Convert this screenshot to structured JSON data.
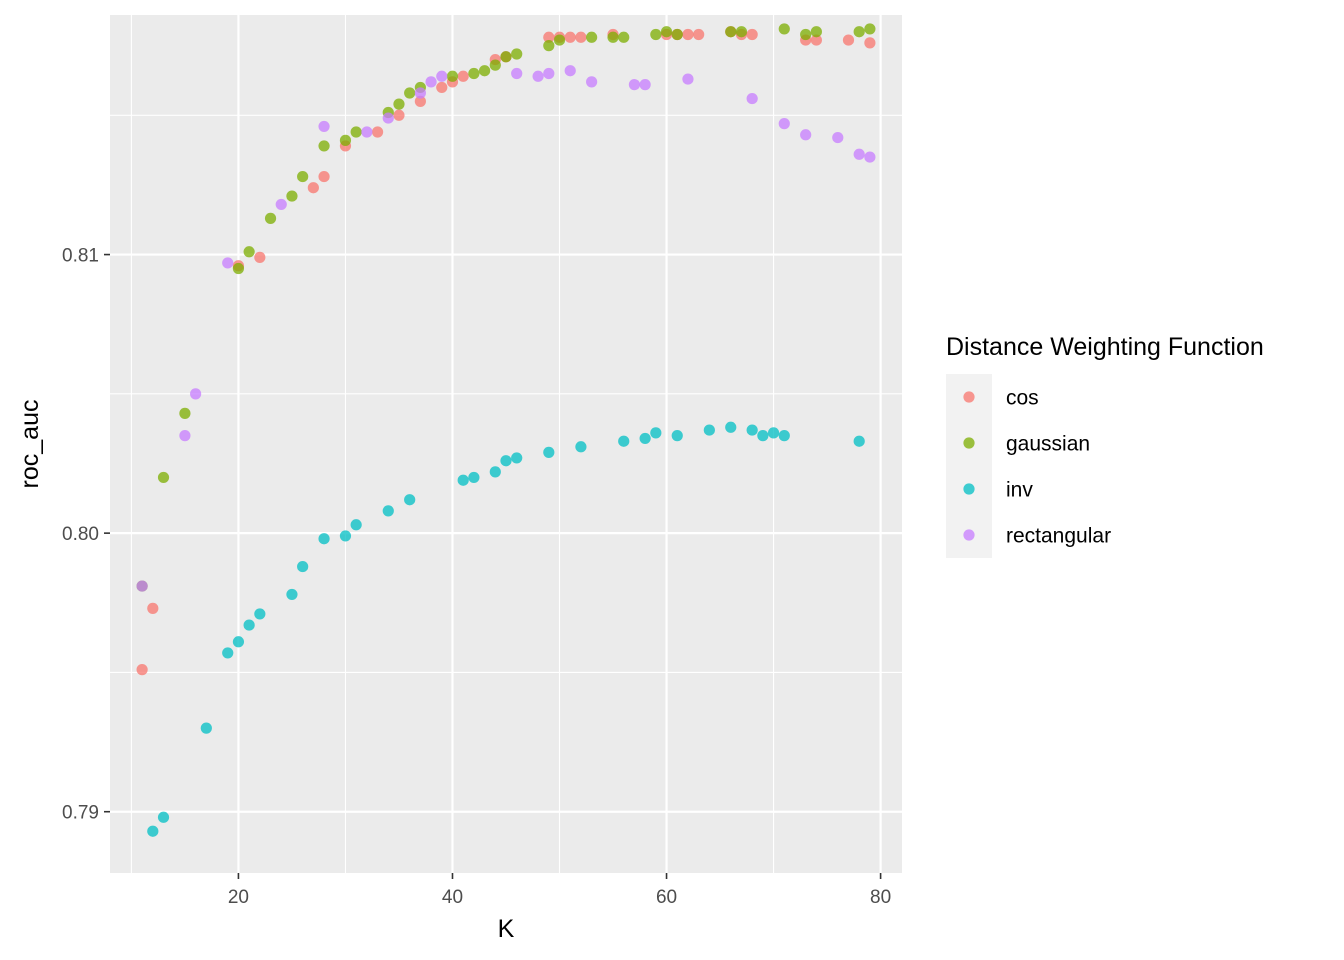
{
  "chart_data": {
    "type": "scatter",
    "xlabel": "K",
    "ylabel": "roc_auc",
    "xlim": [
      8,
      82
    ],
    "ylim": [
      0.7878,
      0.8186
    ],
    "x_ticks": [
      20,
      40,
      60,
      80
    ],
    "x_tick_labels": [
      "20",
      "40",
      "60",
      "80"
    ],
    "x_minor_ticks": [
      10,
      30,
      50,
      70
    ],
    "y_ticks": [
      0.79,
      0.8,
      0.81
    ],
    "y_tick_labels": [
      "0.79",
      "0.80",
      "0.81"
    ],
    "y_minor_ticks": [
      0.795,
      0.805,
      0.815
    ],
    "grid": true,
    "legend": {
      "title": "Distance Weighting Function",
      "position": "right"
    },
    "series": [
      {
        "name": "cos",
        "color": "#F8766D",
        "points": [
          [
            11,
            0.7951
          ],
          [
            12,
            0.7973
          ],
          [
            20,
            0.8096
          ],
          [
            22,
            0.8099
          ],
          [
            27,
            0.8124
          ],
          [
            28,
            0.8128
          ],
          [
            30,
            0.8139
          ],
          [
            33,
            0.8144
          ],
          [
            35,
            0.815
          ],
          [
            37,
            0.8155
          ],
          [
            39,
            0.816
          ],
          [
            40,
            0.8162
          ],
          [
            41,
            0.8164
          ],
          [
            44,
            0.817
          ],
          [
            45,
            0.8171
          ],
          [
            49,
            0.8178
          ],
          [
            50,
            0.8178
          ],
          [
            51,
            0.8178
          ],
          [
            52,
            0.8178
          ],
          [
            55,
            0.8179
          ],
          [
            60,
            0.8179
          ],
          [
            61,
            0.8179
          ],
          [
            62,
            0.8179
          ],
          [
            63,
            0.8179
          ],
          [
            66,
            0.818
          ],
          [
            67,
            0.8179
          ],
          [
            68,
            0.8179
          ],
          [
            73,
            0.8177
          ],
          [
            74,
            0.8177
          ],
          [
            77,
            0.8177
          ],
          [
            79,
            0.8176
          ]
        ]
      },
      {
        "name": "gaussian",
        "color": "#7CAE00",
        "points": [
          [
            11,
            0.7981
          ],
          [
            13,
            0.802
          ],
          [
            15,
            0.8043
          ],
          [
            20,
            0.8095
          ],
          [
            21,
            0.8101
          ],
          [
            23,
            0.8113
          ],
          [
            25,
            0.8121
          ],
          [
            26,
            0.8128
          ],
          [
            28,
            0.8139
          ],
          [
            30,
            0.8141
          ],
          [
            31,
            0.8144
          ],
          [
            34,
            0.8151
          ],
          [
            35,
            0.8154
          ],
          [
            36,
            0.8158
          ],
          [
            37,
            0.816
          ],
          [
            40,
            0.8164
          ],
          [
            42,
            0.8165
          ],
          [
            43,
            0.8166
          ],
          [
            44,
            0.8168
          ],
          [
            45,
            0.8171
          ],
          [
            46,
            0.8172
          ],
          [
            49,
            0.8175
          ],
          [
            50,
            0.8177
          ],
          [
            53,
            0.8178
          ],
          [
            55,
            0.8178
          ],
          [
            56,
            0.8178
          ],
          [
            59,
            0.8179
          ],
          [
            60,
            0.818
          ],
          [
            61,
            0.8179
          ],
          [
            66,
            0.818
          ],
          [
            67,
            0.818
          ],
          [
            71,
            0.8181
          ],
          [
            73,
            0.8179
          ],
          [
            74,
            0.818
          ],
          [
            78,
            0.818
          ],
          [
            79,
            0.8181
          ]
        ]
      },
      {
        "name": "inv",
        "color": "#00BFC4",
        "points": [
          [
            12,
            0.7893
          ],
          [
            13,
            0.7898
          ],
          [
            17,
            0.793
          ],
          [
            19,
            0.7957
          ],
          [
            20,
            0.7961
          ],
          [
            21,
            0.7967
          ],
          [
            22,
            0.7971
          ],
          [
            25,
            0.7978
          ],
          [
            26,
            0.7988
          ],
          [
            28,
            0.7998
          ],
          [
            30,
            0.7999
          ],
          [
            31,
            0.8003
          ],
          [
            34,
            0.8008
          ],
          [
            36,
            0.8012
          ],
          [
            41,
            0.8019
          ],
          [
            42,
            0.802
          ],
          [
            44,
            0.8022
          ],
          [
            45,
            0.8026
          ],
          [
            46,
            0.8027
          ],
          [
            49,
            0.8029
          ],
          [
            52,
            0.8031
          ],
          [
            56,
            0.8033
          ],
          [
            58,
            0.8034
          ],
          [
            59,
            0.8036
          ],
          [
            61,
            0.8035
          ],
          [
            64,
            0.8037
          ],
          [
            66,
            0.8038
          ],
          [
            68,
            0.8037
          ],
          [
            69,
            0.8035
          ],
          [
            70,
            0.8036
          ],
          [
            71,
            0.8035
          ],
          [
            78,
            0.8033
          ]
        ]
      },
      {
        "name": "rectangular",
        "color": "#C77CFF",
        "points": [
          [
            11,
            0.7981
          ],
          [
            15,
            0.8035
          ],
          [
            16,
            0.805
          ],
          [
            19,
            0.8097
          ],
          [
            24,
            0.8118
          ],
          [
            28,
            0.8146
          ],
          [
            32,
            0.8144
          ],
          [
            34,
            0.8149
          ],
          [
            37,
            0.8158
          ],
          [
            38,
            0.8162
          ],
          [
            39,
            0.8164
          ],
          [
            46,
            0.8165
          ],
          [
            48,
            0.8164
          ],
          [
            49,
            0.8165
          ],
          [
            51,
            0.8166
          ],
          [
            53,
            0.8162
          ],
          [
            57,
            0.8161
          ],
          [
            58,
            0.8161
          ],
          [
            62,
            0.8163
          ],
          [
            68,
            0.8156
          ],
          [
            71,
            0.8147
          ],
          [
            73,
            0.8143
          ],
          [
            76,
            0.8142
          ],
          [
            78,
            0.8136
          ],
          [
            79,
            0.8135
          ]
        ]
      }
    ]
  }
}
